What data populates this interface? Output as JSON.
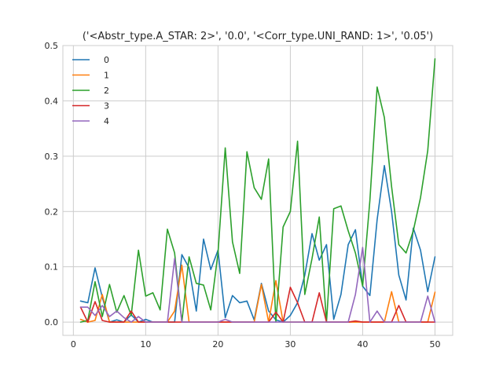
{
  "chart_data": {
    "type": "line",
    "title": "('<Abstr_type.A_STAR: 2>', '0.0', '<Corr_type.UNI_RAND: 1>', '0.05')",
    "xlabel": "",
    "ylabel": "",
    "xlim": [
      -1.45,
      52.45
    ],
    "ylim": [
      -0.024,
      0.5
    ],
    "x_ticks": [
      0,
      10,
      20,
      30,
      40,
      50
    ],
    "x_tick_labels": [
      "0",
      "10",
      "20",
      "30",
      "40",
      "50"
    ],
    "y_ticks": [
      0.0,
      0.1,
      0.2,
      0.3,
      0.4,
      0.5
    ],
    "y_tick_labels": [
      "0.0",
      "0.1",
      "0.2",
      "0.3",
      "0.4",
      "0.5"
    ],
    "grid": true,
    "legend_position": "upper-left",
    "x": [
      1,
      2,
      3,
      4,
      5,
      6,
      7,
      8,
      9,
      10,
      11,
      12,
      13,
      14,
      15,
      16,
      17,
      18,
      19,
      20,
      21,
      22,
      23,
      24,
      25,
      26,
      27,
      28,
      29,
      30,
      31,
      32,
      33,
      34,
      35,
      36,
      37,
      38,
      39,
      40,
      41,
      42,
      43,
      44,
      45,
      46,
      47,
      48,
      49,
      50
    ],
    "series": [
      {
        "name": "0",
        "color": "#1f77b4",
        "values": [
          0.038,
          0.035,
          0.098,
          0.045,
          0.0,
          0.004,
          0.0,
          0.013,
          0.0,
          0.005,
          0.0,
          0.0,
          0.0,
          0.0,
          0.122,
          0.098,
          0.02,
          0.15,
          0.095,
          0.13,
          0.008,
          0.048,
          0.035,
          0.038,
          0.004,
          0.07,
          0.02,
          0.004,
          0.0,
          0.012,
          0.035,
          0.085,
          0.16,
          0.112,
          0.14,
          0.005,
          0.05,
          0.14,
          0.167,
          0.065,
          0.048,
          0.185,
          0.283,
          0.2,
          0.085,
          0.04,
          0.17,
          0.13,
          0.055,
          0.118
        ]
      },
      {
        "name": "1",
        "color": "#ff7f0e",
        "values": [
          0.005,
          0.0,
          0.003,
          0.05,
          0.0,
          0.0,
          0.0,
          0.0,
          0.0,
          0.0,
          0.0,
          0.0,
          0.0,
          0.02,
          0.103,
          0.0,
          0.0,
          0.0,
          0.0,
          0.0,
          0.0,
          0.0,
          0.0,
          0.0,
          0.0,
          0.068,
          0.0,
          0.075,
          0.0,
          0.0,
          0.0,
          0.0,
          0.0,
          0.0,
          0.0,
          0.0,
          0.0,
          0.0,
          0.0,
          0.0,
          0.0,
          0.0,
          0.0,
          0.055,
          0.0,
          0.0,
          0.0,
          0.0,
          0.0,
          0.054
        ]
      },
      {
        "name": "2",
        "color": "#2ca02c",
        "values": [
          0.0,
          0.003,
          0.073,
          0.01,
          0.068,
          0.018,
          0.048,
          0.012,
          0.13,
          0.047,
          0.053,
          0.022,
          0.168,
          0.125,
          0.0,
          0.118,
          0.07,
          0.067,
          0.022,
          0.125,
          0.315,
          0.145,
          0.088,
          0.308,
          0.243,
          0.222,
          0.295,
          0.0,
          0.172,
          0.2,
          0.327,
          0.05,
          0.115,
          0.19,
          0.0,
          0.205,
          0.21,
          0.165,
          0.125,
          0.065,
          0.22,
          0.425,
          0.37,
          0.245,
          0.14,
          0.125,
          0.165,
          0.225,
          0.31,
          0.476
        ]
      },
      {
        "name": "3",
        "color": "#d62728",
        "values": [
          0.027,
          0.0,
          0.037,
          0.003,
          0.0,
          0.0,
          0.0,
          0.02,
          0.0,
          0.0,
          0.0,
          0.0,
          0.0,
          0.0,
          0.0,
          0.0,
          0.0,
          0.0,
          0.0,
          0.0,
          0.0,
          0.0,
          0.0,
          0.0,
          0.0,
          0.0,
          0.0,
          0.018,
          0.0,
          0.063,
          0.035,
          0.0,
          0.0,
          0.053,
          0.0,
          0.0,
          0.0,
          0.0,
          0.002,
          0.0,
          0.0,
          0.0,
          0.0,
          0.0,
          0.03,
          0.0,
          0.0,
          0.0,
          0.0,
          0.0
        ]
      },
      {
        "name": "4",
        "color": "#9467bd",
        "values": [
          0.027,
          0.027,
          0.012,
          0.03,
          0.01,
          0.02,
          0.008,
          0.0,
          0.01,
          0.0,
          0.0,
          0.0,
          0.0,
          0.115,
          0.0,
          0.0,
          0.0,
          0.0,
          0.0,
          0.0,
          0.005,
          0.0,
          0.0,
          0.0,
          0.0,
          0.0,
          0.0,
          0.0,
          0.0,
          0.0,
          0.0,
          0.0,
          0.0,
          0.0,
          0.0,
          0.0,
          0.0,
          0.0,
          0.05,
          0.135,
          0.0,
          0.02,
          0.0,
          0.0,
          0.0,
          0.0,
          0.0,
          0.0,
          0.047,
          0.0
        ]
      }
    ]
  }
}
